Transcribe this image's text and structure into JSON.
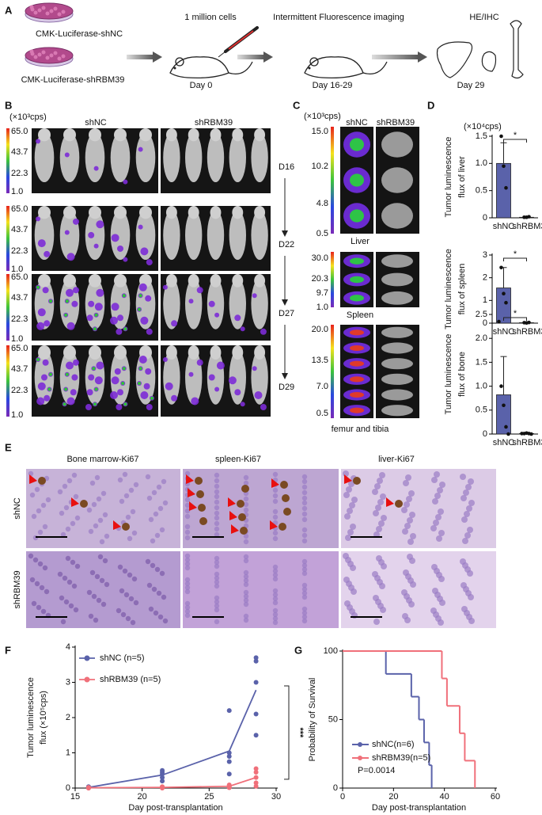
{
  "panel_labels": [
    "A",
    "B",
    "C",
    "D",
    "E",
    "F",
    "G"
  ],
  "panel_a": {
    "groups": [
      "CMK-Luciferase-shNC",
      "CMK-Luciferase-shRBM39"
    ],
    "steps": [
      {
        "title": "1 million cells",
        "day": "Day 0"
      },
      {
        "title": "Intermittent Fluorescence imaging",
        "day": "Day 16-29"
      },
      {
        "title": "HE/IHC",
        "day": "Day 29"
      }
    ]
  },
  "panel_b": {
    "unit": "(×10³cps)",
    "columns": [
      "shNC",
      "shRBM39"
    ],
    "scale": [
      "65.0",
      "43.7",
      "22.3",
      "1.0"
    ],
    "days": [
      "D16",
      "D22",
      "D27",
      "D29"
    ]
  },
  "panel_c": {
    "unit": "(×10³cps)",
    "columns": [
      "shNC",
      "shRBM39"
    ],
    "organs": [
      {
        "name": "Liver",
        "scale": [
          "15.0",
          "10.2",
          "4.8",
          "0.5"
        ]
      },
      {
        "name": "Spleen",
        "scale": [
          "30.0",
          "20.3",
          "9.7",
          "1.0"
        ]
      },
      {
        "name": "femur and tibia",
        "scale": [
          "20.0",
          "13.5",
          "7.0",
          "0.5"
        ]
      }
    ]
  },
  "panel_e": {
    "columns": [
      "Bone marrow-Ki67",
      "spleen-Ki67",
      "liver-Ki67"
    ],
    "rows": [
      "shNC",
      "shRBM39"
    ]
  },
  "chart_data": [
    {
      "type": "bar",
      "ylabel": [
        "Tumor luminescence",
        "flux of liver"
      ],
      "unit": "(×10⁴cps)",
      "categories": [
        "shNC",
        "shRBM39"
      ],
      "values": [
        1.0,
        0.01
      ],
      "errors": [
        0.38,
        0.005
      ],
      "points": [
        [
          1.5,
          0.95,
          0.55
        ],
        [
          0.01,
          0.01,
          0.02
        ]
      ],
      "color": "#5a62aa",
      "annotation": "*",
      "ylim": [
        0,
        1.5
      ],
      "yticks": [
        0,
        0.5,
        {
          "value": 1,
          "label": "1.0"
        },
        1.5
      ]
    },
    {
      "type": "bar",
      "ylabel": [
        "Tumor luminescence",
        "flux of spleen"
      ],
      "categories": [
        "shNC",
        "shRBM39"
      ],
      "values": [
        1.55,
        0.02
      ],
      "errors": [
        0.9,
        0.01
      ],
      "points": [
        [
          2.45,
          1.3,
          0.9
        ],
        [
          0.02,
          0.01,
          0.03
        ]
      ],
      "color": "#5a62aa",
      "annotation": "*",
      "ylim": [
        0,
        3
      ],
      "yticks": [
        0,
        1,
        2,
        3
      ]
    },
    {
      "type": "bar",
      "ylabel": [
        "Tumor luminescence",
        "flux of bone"
      ],
      "categories": [
        "shNC",
        "shRBM39"
      ],
      "values": [
        0.82,
        0.01
      ],
      "errors": [
        0.8,
        0.01
      ],
      "points": [
        [
          2.35,
          1.0,
          0.6,
          0.15,
          0.0
        ],
        [
          0.01,
          0.01,
          0.02,
          0.01,
          0.0
        ]
      ],
      "color": "#5a62aa",
      "annotation": "*",
      "ylim": [
        0,
        2.5
      ],
      "yticks": [
        0,
        0.5,
        {
          "value": 1,
          "label": "1.0"
        },
        1.5,
        {
          "value": 2,
          "label": "2.0"
        },
        2.5
      ]
    },
    {
      "type": "line",
      "ylabel": [
        "Tumor luminescence",
        "flux (×10⁵cps)"
      ],
      "xlabel": "Day post-transplantation",
      "x": [
        16,
        21.5,
        26.5,
        28.5
      ],
      "xlim": [
        15,
        30
      ],
      "xticks": [
        15,
        20,
        25,
        30
      ],
      "ylim": [
        0,
        4
      ],
      "yticks": [
        0,
        1,
        2,
        3,
        4
      ],
      "annotation": "***",
      "series": [
        {
          "name": "shNC (n=5)",
          "color": "#5a62aa",
          "values": [
            0.02,
            0.37,
            1.05,
            2.78
          ],
          "points": [
            [
              0.02,
              0.03,
              0.01,
              0.02,
              0.04
            ],
            [
              0.2,
              0.3,
              0.4,
              0.45,
              0.5
            ],
            [
              0.4,
              0.75,
              0.9,
              1.0,
              2.2
            ],
            [
              1.5,
              2.1,
              3.0,
              3.6,
              3.7
            ]
          ]
        },
        {
          "name": "shRBM39 (n=5)",
          "color": "#f0707a",
          "values": [
            0.01,
            0.02,
            0.05,
            0.3
          ],
          "points": [
            [
              0,
              0,
              0.01,
              0.01,
              0.02
            ],
            [
              0,
              0.01,
              0.02,
              0.03,
              0.04
            ],
            [
              0.01,
              0.03,
              0.05,
              0.07,
              0.09
            ],
            [
              0.05,
              0.15,
              0.3,
              0.45,
              0.55
            ]
          ]
        }
      ]
    },
    {
      "type": "step",
      "ylabel": "Probability of Survival",
      "xlabel": "Day post-transplantation",
      "xlim": [
        0,
        60
      ],
      "xticks": [
        0,
        20,
        40,
        60
      ],
      "ylim": [
        0,
        100
      ],
      "yticks": [
        0,
        50,
        100
      ],
      "annotation": "P=0.0014",
      "series": [
        {
          "name": "shNC(n=6)",
          "color": "#5a62aa",
          "x": [
            0,
            17,
            27,
            30,
            32,
            34,
            35
          ],
          "values": [
            100,
            83.3,
            66.7,
            50,
            33.3,
            16.7,
            0
          ]
        },
        {
          "name": "shRBM39(n=5)",
          "color": "#f0707a",
          "x": [
            0,
            39,
            41,
            46,
            48,
            52
          ],
          "values": [
            100,
            80,
            60,
            40,
            20,
            0
          ]
        }
      ]
    }
  ]
}
